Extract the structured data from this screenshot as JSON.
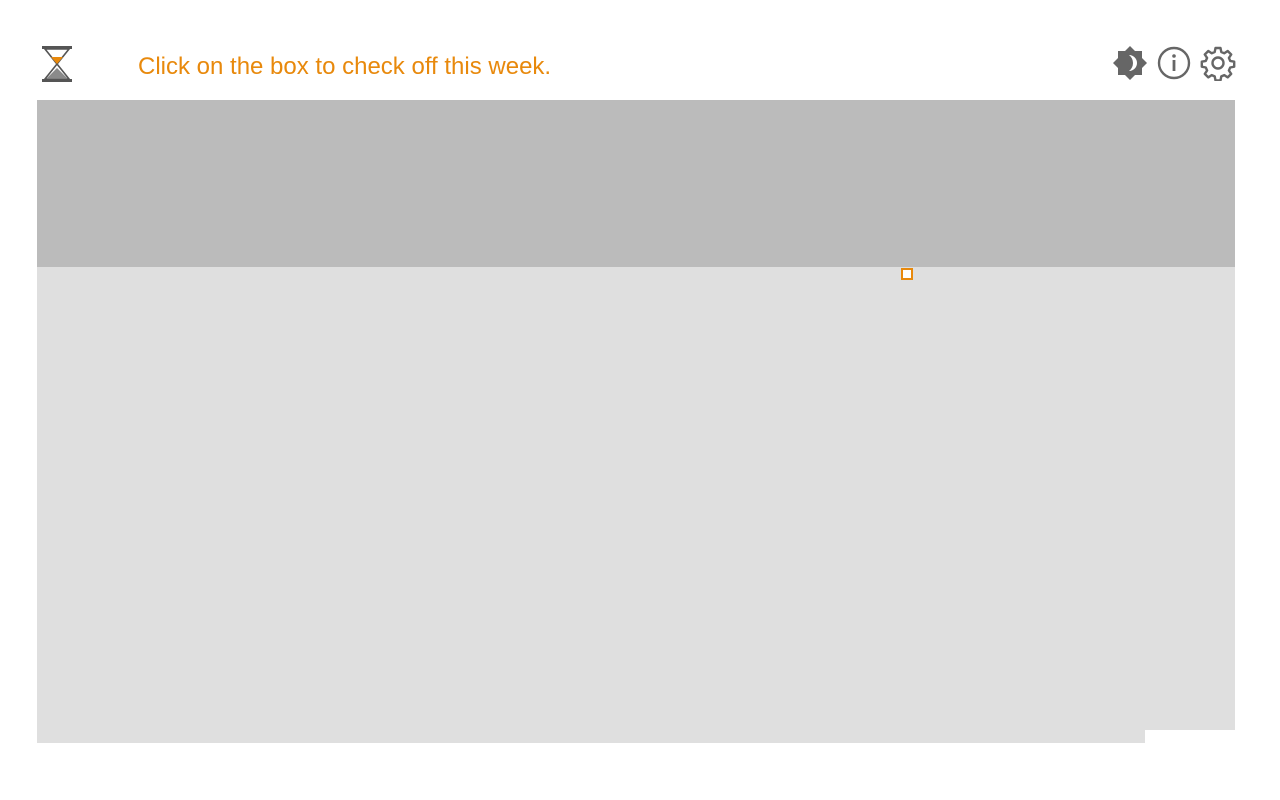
{
  "header": {
    "instruction": "Click on the box to check off this week."
  },
  "toolbar": {
    "items": [
      {
        "icon": "brightness-icon",
        "label": "Toggle theme"
      },
      {
        "icon": "info-icon",
        "label": "About"
      },
      {
        "icon": "gear-icon",
        "label": "Settings"
      }
    ]
  },
  "colors": {
    "accent": "#e8890c",
    "past_weeks": "#bbbbbb",
    "future_weeks": "#dfdfdf",
    "icon": "#666666"
  }
}
